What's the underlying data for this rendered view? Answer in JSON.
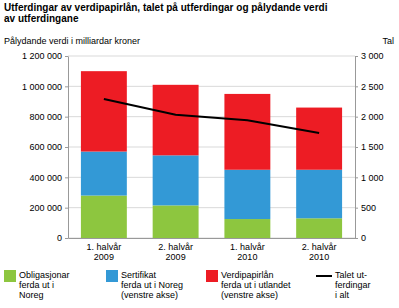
{
  "chart_data": {
    "type": "bar",
    "stacked": true,
    "grid": true,
    "title": "Utferdingar av verdipapirlån, talet på utferdingar og pålydande verdi\nav utferdingane",
    "y_label": "Pålydande verdi i milliardar kroner",
    "y2_label": "Tal",
    "categories": [
      "1. halvår\n2009",
      "2. halvår\n2009",
      "1. halvår\n2010",
      "2. halvår\n2010"
    ],
    "ylim": [
      0,
      1200000
    ],
    "yticks": [
      0,
      {
        "value": 200000,
        "label": "200 000"
      },
      {
        "value": 400000,
        "label": "400 000"
      },
      {
        "value": 600000,
        "label": "600 000"
      },
      {
        "value": 800000,
        "label": "800 000"
      },
      {
        "value": 1000000,
        "label": "1 000 000"
      },
      {
        "value": 1200000,
        "label": "1 200 000"
      }
    ],
    "y2lim": [
      0,
      3000
    ],
    "y2ticks": [
      0,
      500,
      {
        "value": 1000,
        "label": "1 000"
      },
      {
        "value": 1500,
        "label": "1 500"
      },
      {
        "value": 2000,
        "label": "2 000"
      },
      {
        "value": 2500,
        "label": "2 500"
      },
      {
        "value": 3000,
        "label": "3 000"
      }
    ],
    "legend": "bottom",
    "series": [
      {
        "name": "Obligasjonar\nferda ut i\nNoreg",
        "type": "bar",
        "color": "#8dc63f",
        "values": [
          280000,
          215000,
          125000,
          130000
        ]
      },
      {
        "name": "Sertifikat\nferda ut i Noreg\n(venstre akse)",
        "type": "bar",
        "color": "#3399d6",
        "values": [
          290000,
          330000,
          325000,
          320000
        ]
      },
      {
        "name": "Verdipapirlån\nferda ut i utlandet\n(venstre akse)",
        "type": "bar",
        "color": "#ed1c24",
        "values": [
          530000,
          465000,
          500000,
          410000
        ]
      },
      {
        "name": "Talet ut-\nferdingar\ni alt",
        "type": "line",
        "axis": "y2",
        "color": "#000000",
        "values": [
          2290,
          2030,
          1940,
          1730
        ]
      }
    ]
  }
}
